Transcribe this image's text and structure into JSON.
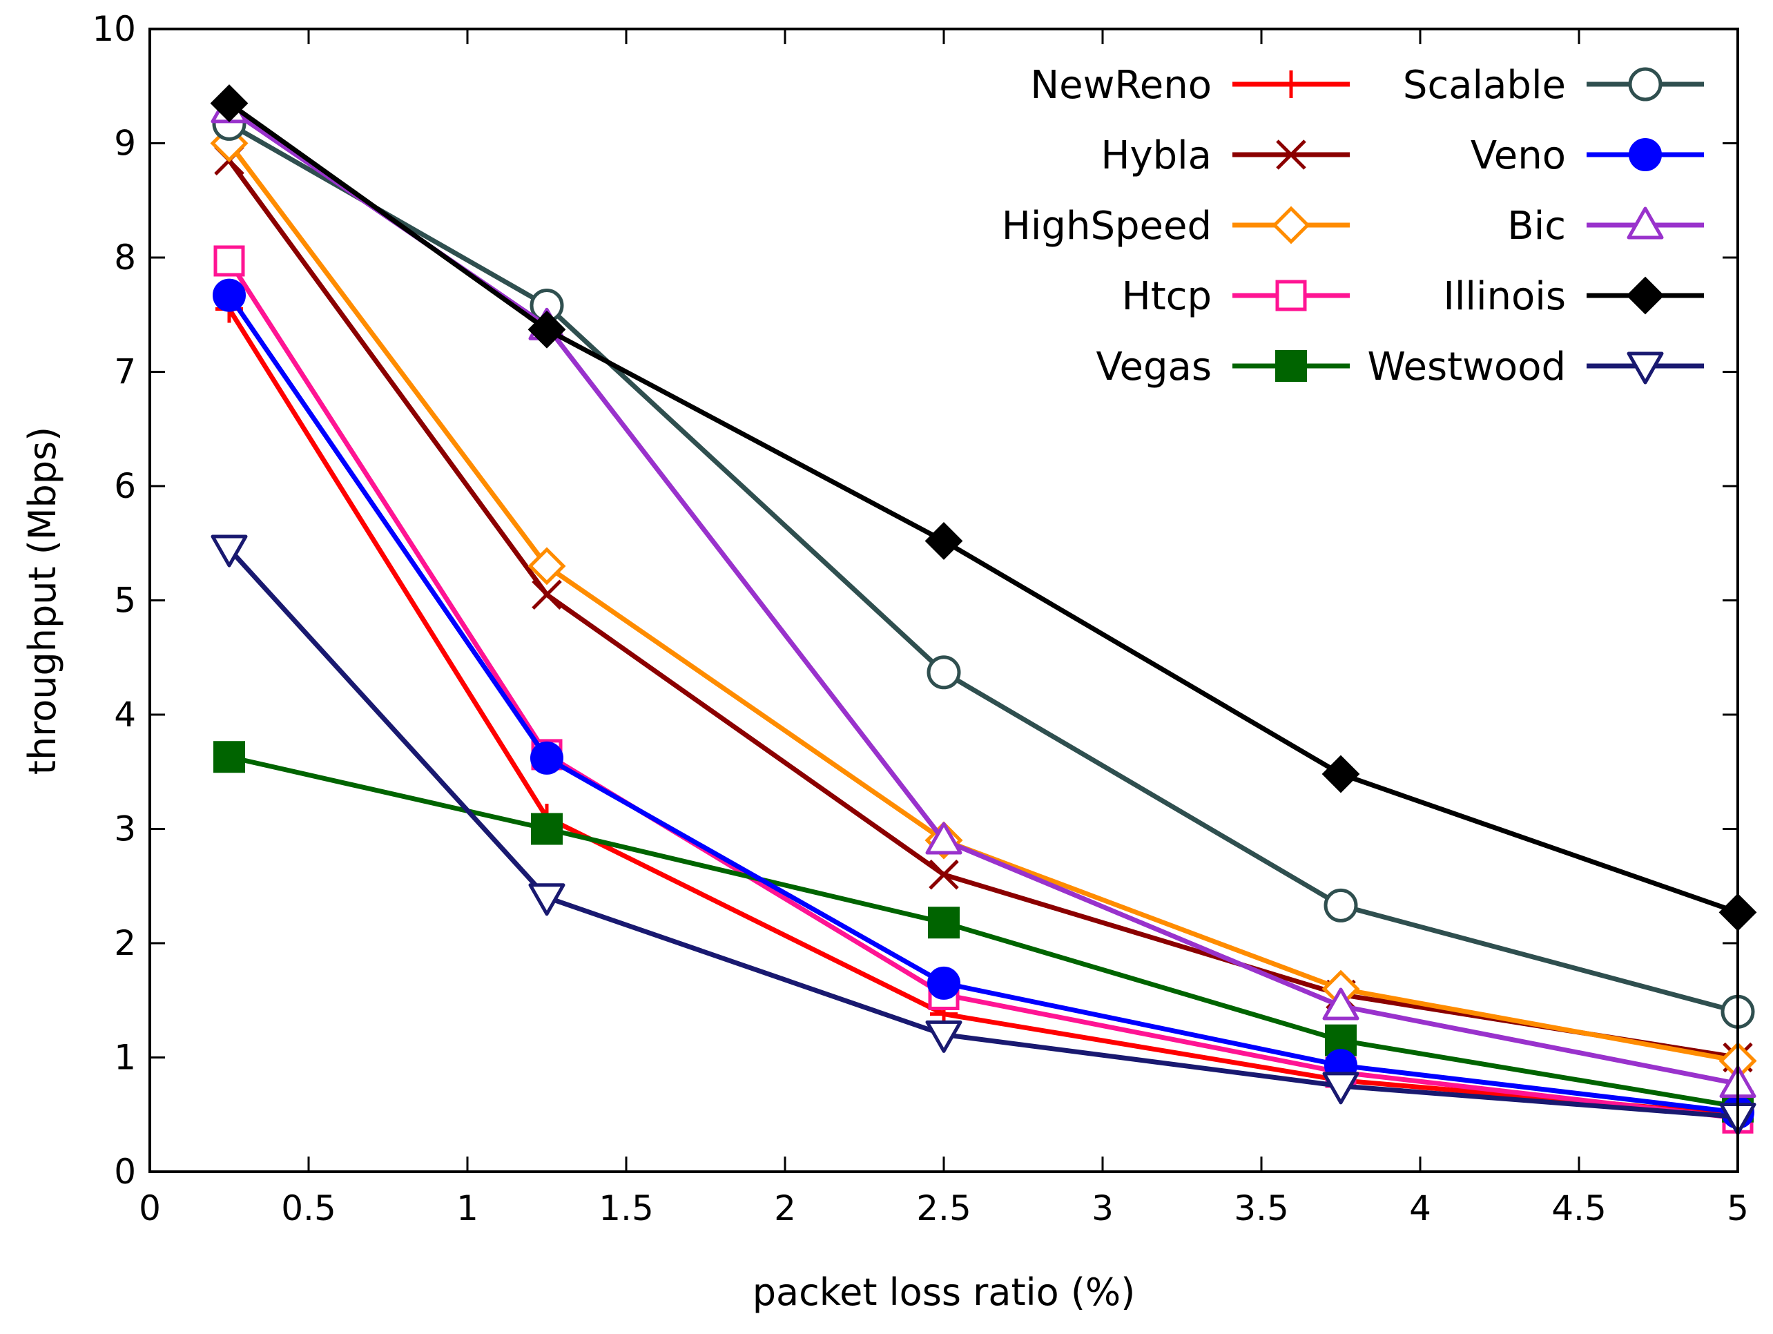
{
  "chart_data": {
    "type": "line",
    "title": "",
    "xlabel": "packet loss ratio (%)",
    "ylabel": "throughput (Mbps)",
    "xlim": [
      0,
      5
    ],
    "ylim": [
      0,
      10
    ],
    "xticks": [
      0,
      0.5,
      1,
      1.5,
      2,
      2.5,
      3,
      3.5,
      4,
      4.5,
      5
    ],
    "xtick_labels": [
      "0",
      "0.5",
      "1",
      "1.5",
      "2",
      "2.5",
      "3",
      "3.5",
      "4",
      "4.5",
      "5"
    ],
    "yticks": [
      0,
      1,
      2,
      3,
      4,
      5,
      6,
      7,
      8,
      9,
      10
    ],
    "ytick_labels": [
      "0",
      "1",
      "2",
      "3",
      "4",
      "5",
      "6",
      "7",
      "8",
      "9",
      "10"
    ],
    "grid": false,
    "legend_position": "top-right",
    "x": [
      0.25,
      1.25,
      2.5,
      3.75,
      5
    ],
    "series": [
      {
        "name": "NewReno",
        "color": "#ff0000",
        "marker": "plus",
        "values": [
          7.55,
          3.1,
          1.38,
          0.8,
          0.5
        ]
      },
      {
        "name": "Hybla",
        "color": "#8b0000",
        "marker": "cross",
        "values": [
          8.85,
          5.05,
          2.6,
          1.55,
          1.0
        ]
      },
      {
        "name": "HighSpeed",
        "color": "#ff8c00",
        "marker": "diamond-open",
        "values": [
          9.0,
          5.3,
          2.9,
          1.6,
          0.97
        ]
      },
      {
        "name": "Htcp",
        "color": "#ff1493",
        "marker": "square-open",
        "values": [
          7.97,
          3.65,
          1.55,
          0.87,
          0.47
        ]
      },
      {
        "name": "Vegas",
        "color": "#006400",
        "marker": "square-filled",
        "values": [
          3.63,
          3.0,
          2.18,
          1.15,
          0.57
        ]
      },
      {
        "name": "Scalable",
        "color": "#2f4f4f",
        "marker": "circle-open",
        "values": [
          9.17,
          7.58,
          4.37,
          2.33,
          1.4
        ]
      },
      {
        "name": "Veno",
        "color": "#0000ff",
        "marker": "circle-filled",
        "values": [
          7.67,
          3.62,
          1.65,
          0.93,
          0.52
        ]
      },
      {
        "name": "Bic",
        "color": "#9932cc",
        "marker": "triangle-open",
        "values": [
          9.3,
          7.4,
          2.9,
          1.45,
          0.77
        ]
      },
      {
        "name": "Illinois",
        "color": "#000000",
        "marker": "diamond-filled",
        "values": [
          9.35,
          7.37,
          5.52,
          3.48,
          2.27
        ]
      },
      {
        "name": "Westwood",
        "color": "#191970",
        "marker": "triangle-down-open",
        "values": [
          5.45,
          2.4,
          1.2,
          0.75,
          0.48
        ]
      }
    ]
  }
}
